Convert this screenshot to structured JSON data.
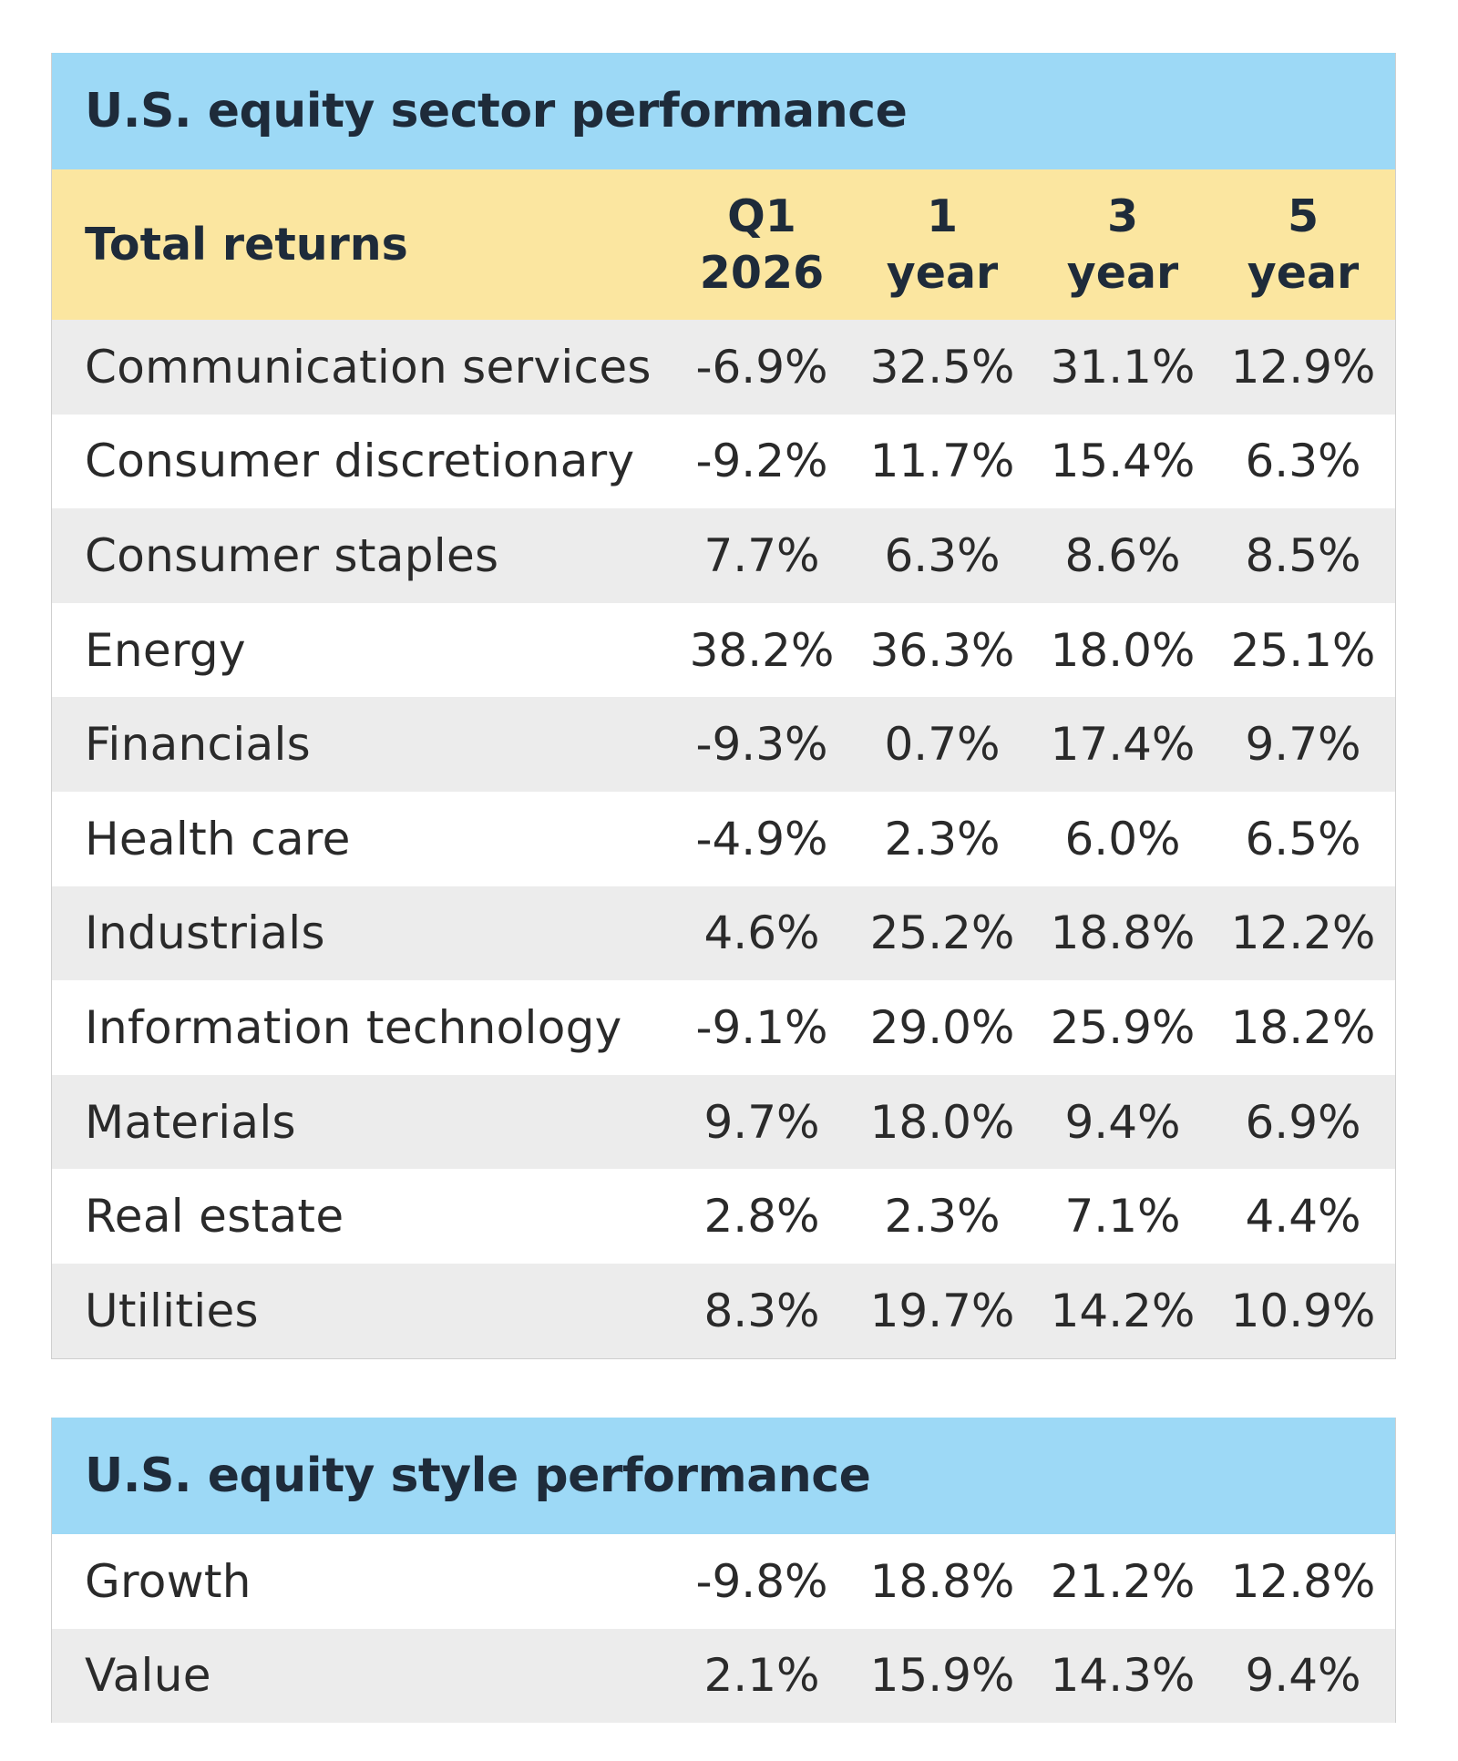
{
  "sector_table": {
    "title": "U.S. equity sector performance",
    "header": {
      "label": "Total returns",
      "columns": [
        {
          "line1": "Q1",
          "line2": "2026"
        },
        {
          "line1": "1",
          "line2": "year"
        },
        {
          "line1": "3",
          "line2": "year"
        },
        {
          "line1": "5",
          "line2": "year"
        }
      ]
    },
    "rows": [
      {
        "label": "Communication services",
        "values": [
          "-6.9%",
          "32.5%",
          "31.1%",
          "12.9%"
        ]
      },
      {
        "label": "Consumer discretionary",
        "values": [
          "-9.2%",
          "11.7%",
          "15.4%",
          "6.3%"
        ]
      },
      {
        "label": "Consumer staples",
        "values": [
          "7.7%",
          "6.3%",
          "8.6%",
          "8.5%"
        ]
      },
      {
        "label": "Energy",
        "values": [
          "38.2%",
          "36.3%",
          "18.0%",
          "25.1%"
        ]
      },
      {
        "label": "Financials",
        "values": [
          "-9.3%",
          "0.7%",
          "17.4%",
          "9.7%"
        ]
      },
      {
        "label": "Health care",
        "values": [
          "-4.9%",
          "2.3%",
          "6.0%",
          "6.5%"
        ]
      },
      {
        "label": "Industrials",
        "values": [
          "4.6%",
          "25.2%",
          "18.8%",
          "12.2%"
        ]
      },
      {
        "label": "Information technology",
        "values": [
          "-9.1%",
          "29.0%",
          "25.9%",
          "18.2%"
        ]
      },
      {
        "label": "Materials",
        "values": [
          "9.7%",
          "18.0%",
          "9.4%",
          "6.9%"
        ]
      },
      {
        "label": "Real estate",
        "values": [
          "2.8%",
          "2.3%",
          "7.1%",
          "4.4%"
        ]
      },
      {
        "label": "Utilities",
        "values": [
          "8.3%",
          "19.7%",
          "14.2%",
          "10.9%"
        ]
      }
    ]
  },
  "style_table": {
    "title": "U.S. equity style performance",
    "rows": [
      {
        "label": "Growth",
        "values": [
          "-9.8%",
          "18.8%",
          "21.2%",
          "12.8%"
        ]
      },
      {
        "label": "Value",
        "values": [
          "2.1%",
          "15.9%",
          "14.3%",
          "9.4%"
        ]
      }
    ]
  },
  "colors": {
    "title_bar": "#9dd9f6",
    "header_row": "#fbe6a0",
    "shaded_row": "#ececec"
  },
  "chart_data": [
    {
      "type": "table",
      "title": "U.S. equity sector performance",
      "columns": [
        "Total returns",
        "Q1 2026",
        "1 year",
        "3 year",
        "5 year"
      ],
      "rows": [
        [
          "Communication services",
          -6.9,
          32.5,
          31.1,
          12.9
        ],
        [
          "Consumer discretionary",
          -9.2,
          11.7,
          15.4,
          6.3
        ],
        [
          "Consumer staples",
          7.7,
          6.3,
          8.6,
          8.5
        ],
        [
          "Energy",
          38.2,
          36.3,
          18.0,
          25.1
        ],
        [
          "Financials",
          -9.3,
          0.7,
          17.4,
          9.7
        ],
        [
          "Health care",
          -4.9,
          2.3,
          6.0,
          6.5
        ],
        [
          "Industrials",
          4.6,
          25.2,
          18.8,
          12.2
        ],
        [
          "Information technology",
          -9.1,
          29.0,
          25.9,
          18.2
        ],
        [
          "Materials",
          9.7,
          18.0,
          9.4,
          6.9
        ],
        [
          "Real estate",
          2.8,
          2.3,
          7.1,
          4.4
        ],
        [
          "Utilities",
          8.3,
          19.7,
          14.2,
          10.9
        ]
      ]
    },
    {
      "type": "table",
      "title": "U.S. equity style performance",
      "columns": [
        "",
        "Q1 2026",
        "1 year",
        "3 year",
        "5 year"
      ],
      "rows": [
        [
          "Growth",
          -9.8,
          18.8,
          21.2,
          12.8
        ],
        [
          "Value",
          2.1,
          15.9,
          14.3,
          9.4
        ]
      ]
    }
  ]
}
